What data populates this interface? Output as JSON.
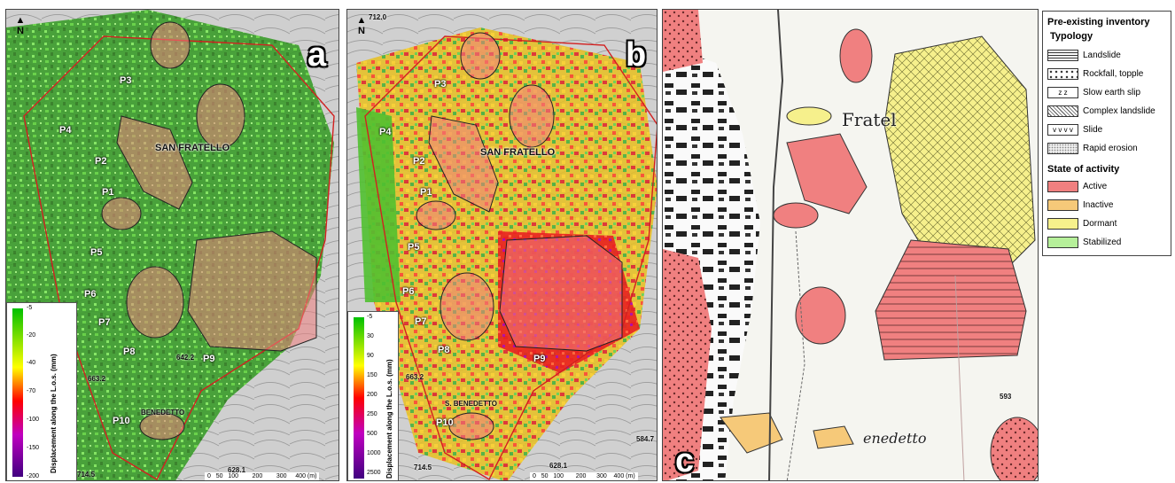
{
  "panels": {
    "a": {
      "letter": "a",
      "north": "N",
      "town": "SAN FRATELLO",
      "town2": "BENEDETTO",
      "points": [
        "P1",
        "P2",
        "P3",
        "P4",
        "P5",
        "P6",
        "P7",
        "P8",
        "P9",
        "P10"
      ],
      "colorbar": {
        "title": "Displacement along the L.o.s. (mm)",
        "ticks": [
          "-5",
          "-20",
          "-40",
          "-70",
          "-100",
          "-150",
          "-200"
        ]
      },
      "scale": {
        "labels": [
          "0",
          "50",
          "100",
          "200",
          "300",
          "400 (m)"
        ]
      },
      "spot_heights": [
        "714.5",
        "628.1",
        "663.2",
        "642.2"
      ]
    },
    "b": {
      "letter": "b",
      "north": "N",
      "town": "SAN FRATELLO",
      "town2": "S. BENEDETTO",
      "points": [
        "P1",
        "P2",
        "P3",
        "P4",
        "P5",
        "P6",
        "P7",
        "P8",
        "P9",
        "P10"
      ],
      "colorbar": {
        "title": "Displacement along the L.o.s. (mm)",
        "ticks": [
          "-5",
          "30",
          "90",
          "150",
          "200",
          "250",
          "500",
          "1000",
          "2500"
        ]
      },
      "scale": {
        "labels": [
          "0",
          "50",
          "100",
          "200",
          "300",
          "400 (m)"
        ]
      },
      "spot_heights": [
        "714.5",
        "628.1",
        "584.7",
        "712.0",
        "663.2"
      ]
    },
    "c": {
      "letter": "c",
      "map_labels": [
        "Fratel",
        "enedetto",
        "593"
      ]
    }
  },
  "legend": {
    "title": "Pre-existing inventory",
    "typology_title": "Typology",
    "typology": [
      {
        "label": "Landslide",
        "icon": "horizontal-lines-pattern"
      },
      {
        "label": "Rockfall, topple",
        "icon": "dots-pattern"
      },
      {
        "label": "Slow earth slip",
        "icon": "z-pattern"
      },
      {
        "label": "Complex landslide",
        "icon": "crosshatch-pattern"
      },
      {
        "label": "Slide",
        "icon": "v-pattern"
      },
      {
        "label": "Rapid erosion",
        "icon": "speckle-pattern"
      }
    ],
    "activity_title": "State of activity",
    "activity": [
      {
        "label": "Active",
        "color": "#f08080"
      },
      {
        "label": "Inactive",
        "color": "#f6c979"
      },
      {
        "label": "Dormant",
        "color": "#f6f08c"
      },
      {
        "label": "Stabilized",
        "color": "#b6f09a"
      }
    ]
  },
  "colors": {
    "active": "#f08080",
    "inactive": "#f6c979",
    "dormant": "#f6f08c",
    "stabilized": "#b6f09a",
    "boundary": "#d22020"
  }
}
